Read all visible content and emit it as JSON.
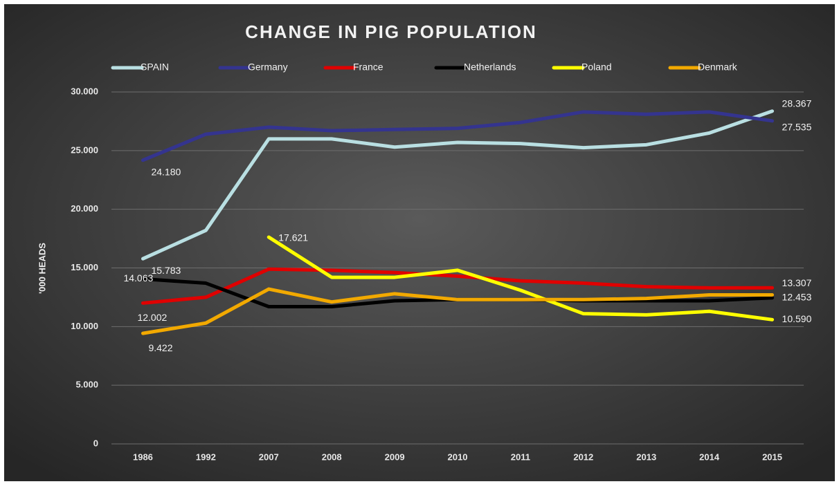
{
  "chart_data": {
    "type": "line",
    "title": "CHANGE IN PIG POPULATION",
    "y_label": "'000 HEADS",
    "categories": [
      "1986",
      "1992",
      "2007",
      "2008",
      "2009",
      "2010",
      "2011",
      "2012",
      "2013",
      "2014",
      "2015"
    ],
    "ylim": [
      0,
      30000
    ],
    "yticks": [
      0,
      {
        "value": 5000,
        "label": "5.000"
      },
      {
        "value": 10000,
        "label": "10.000"
      },
      {
        "value": 15000,
        "label": "15.000"
      },
      {
        "value": 20000,
        "label": "20.000"
      },
      {
        "value": 25000,
        "label": "25.000"
      },
      {
        "value": 30000,
        "label": "30.000"
      }
    ],
    "grid": true,
    "legend": "top",
    "series": [
      {
        "name": "SPAIN",
        "color": "#b9dfe2",
        "values": [
          15783,
          18200,
          26000,
          26000,
          25300,
          25700,
          25600,
          25250,
          25500,
          26500,
          28367
        ],
        "value_labels": [
          "15.783",
          null,
          null,
          null,
          null,
          null,
          null,
          null,
          null,
          null,
          "28.367"
        ]
      },
      {
        "name": "Germany",
        "color": "#34348f",
        "values": [
          24180,
          26400,
          27000,
          26700,
          26800,
          26900,
          27400,
          28300,
          28100,
          28300,
          27535
        ],
        "value_labels": [
          "24.180",
          null,
          null,
          null,
          null,
          null,
          null,
          null,
          null,
          null,
          "27.535"
        ]
      },
      {
        "name": "France",
        "color": "#e00000",
        "values": [
          12002,
          12500,
          14900,
          14800,
          14600,
          14300,
          13900,
          13700,
          13400,
          13300,
          13307
        ],
        "value_labels": [
          "12.002",
          null,
          null,
          null,
          null,
          null,
          null,
          null,
          null,
          null,
          "13.307"
        ]
      },
      {
        "name": "Netherlands",
        "color": "#000000",
        "values": [
          14063,
          13700,
          11700,
          11700,
          12200,
          12300,
          12300,
          12200,
          12200,
          12200,
          12453
        ],
        "value_labels": [
          "14.063",
          null,
          null,
          null,
          null,
          null,
          null,
          null,
          null,
          null,
          "12.453"
        ]
      },
      {
        "name": "Poland",
        "color": "#ffff00",
        "values": [
          null,
          null,
          17621,
          14200,
          14200,
          14800,
          13100,
          11100,
          11000,
          11300,
          10590
        ],
        "value_labels": [
          null,
          null,
          "17.621",
          null,
          null,
          null,
          null,
          null,
          null,
          null,
          "10.590"
        ]
      },
      {
        "name": "Denmark",
        "color": "#f2a900",
        "values": [
          9422,
          10300,
          13200,
          12100,
          12800,
          12300,
          12300,
          12300,
          12400,
          12700,
          12700
        ],
        "value_labels": [
          "9.422",
          null,
          null,
          null,
          null,
          null,
          null,
          null,
          null,
          null,
          null
        ]
      }
    ]
  }
}
